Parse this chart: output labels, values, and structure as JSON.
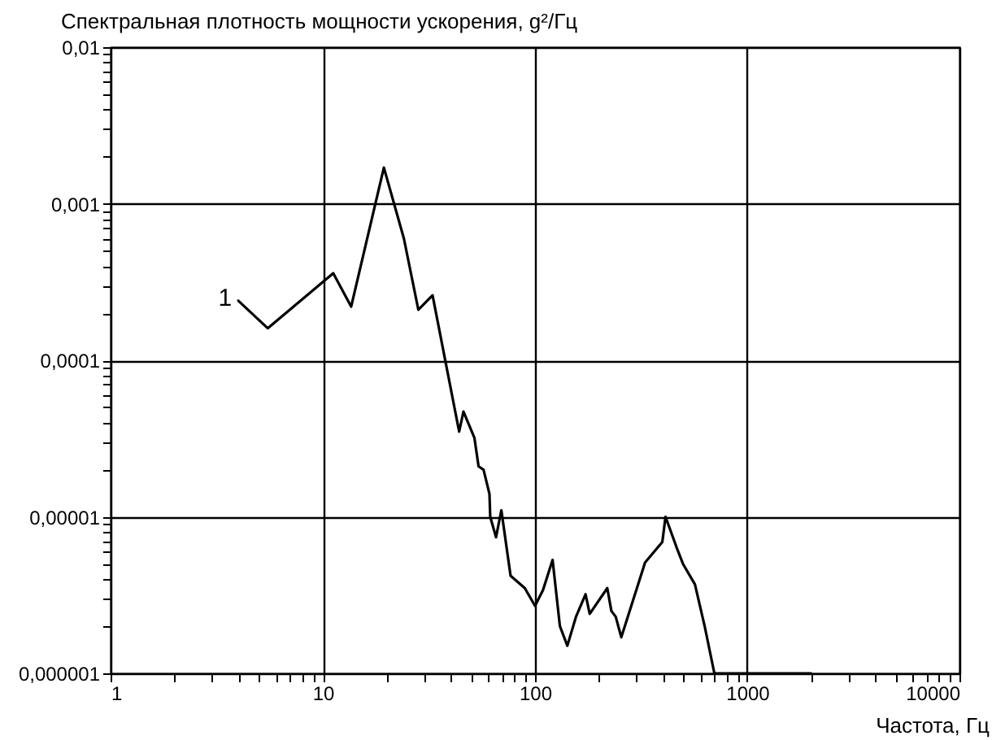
{
  "chart_data": {
    "type": "line",
    "ylabel": "Спектральная плотность мощности ускорения, g²/Гц",
    "xlabel": "Частота, Гц",
    "log": "xy",
    "grid": true,
    "marker": "none",
    "line_style": "solid",
    "xlim": [
      1,
      10000
    ],
    "ylim": [
      1e-06,
      0.01
    ],
    "xticks": [
      1,
      {
        "value": 2,
        "label": null
      },
      {
        "value": 3,
        "label": null
      },
      {
        "value": 4,
        "label": null
      },
      {
        "value": 5,
        "label": null
      },
      {
        "value": 6,
        "label": null
      },
      {
        "value": 7,
        "label": null
      },
      {
        "value": 8,
        "label": null
      },
      {
        "value": 9,
        "label": null
      },
      10,
      {
        "value": 20,
        "label": null
      },
      {
        "value": 30,
        "label": null
      },
      {
        "value": 40,
        "label": null
      },
      {
        "value": 50,
        "label": null
      },
      {
        "value": 60,
        "label": null
      },
      {
        "value": 70,
        "label": null
      },
      {
        "value": 80,
        "label": null
      },
      {
        "value": 90,
        "label": null
      },
      100,
      {
        "value": 200,
        "label": null
      },
      {
        "value": 300,
        "label": null
      },
      {
        "value": 400,
        "label": null
      },
      {
        "value": 500,
        "label": null
      },
      {
        "value": 600,
        "label": null
      },
      {
        "value": 700,
        "label": null
      },
      {
        "value": 800,
        "label": null
      },
      {
        "value": 900,
        "label": null
      },
      1000,
      {
        "value": 2000,
        "label": null
      },
      {
        "value": 3000,
        "label": null
      },
      {
        "value": 4000,
        "label": null
      },
      {
        "value": 5000,
        "label": null
      },
      {
        "value": 6000,
        "label": null
      },
      {
        "value": 7000,
        "label": null
      },
      {
        "value": 8000,
        "label": null
      },
      {
        "value": 9000,
        "label": null
      },
      10000
    ],
    "yticks": [
      {
        "value": 1e-06,
        "label": "0,000001"
      },
      {
        "value": 2e-06,
        "label": null
      },
      {
        "value": 3e-06,
        "label": null
      },
      {
        "value": 4e-06,
        "label": null
      },
      {
        "value": 5e-06,
        "label": null
      },
      {
        "value": 6e-06,
        "label": null
      },
      {
        "value": 7e-06,
        "label": null
      },
      {
        "value": 8e-06,
        "label": null
      },
      {
        "value": 9e-06,
        "label": null
      },
      {
        "value": 1e-05,
        "label": "0,00001"
      },
      {
        "value": 2e-05,
        "label": null
      },
      {
        "value": 3e-05,
        "label": null
      },
      {
        "value": 4e-05,
        "label": null
      },
      {
        "value": 5e-05,
        "label": null
      },
      {
        "value": 6e-05,
        "label": null
      },
      {
        "value": 7e-05,
        "label": null
      },
      {
        "value": 8e-05,
        "label": null
      },
      {
        "value": 9e-05,
        "label": null
      },
      {
        "value": 0.0001,
        "label": "0,0001"
      },
      {
        "value": 0.0002,
        "label": null
      },
      {
        "value": 0.0003,
        "label": null
      },
      {
        "value": 0.0004,
        "label": null
      },
      {
        "value": 0.0005,
        "label": null
      },
      {
        "value": 0.0006,
        "label": null
      },
      {
        "value": 0.0007,
        "label": null
      },
      {
        "value": 0.0008,
        "label": null
      },
      {
        "value": 0.0009,
        "label": null
      },
      {
        "value": 0.001,
        "label": "0,001"
      },
      {
        "value": 0.002,
        "label": null
      },
      {
        "value": 0.003,
        "label": null
      },
      {
        "value": 0.004,
        "label": null
      },
      {
        "value": 0.005,
        "label": null
      },
      {
        "value": 0.006,
        "label": null
      },
      {
        "value": 0.007,
        "label": null
      },
      {
        "value": 0.008,
        "label": null
      },
      {
        "value": 0.009,
        "label": null
      },
      {
        "value": 0.01,
        "label": "0,01"
      }
    ],
    "series": [
      {
        "name": "1",
        "color": "#000000",
        "x": [
          4.0,
          5.5,
          11.2,
          13.6,
          19.4,
          24.1,
          28.2,
          32.9,
          43.9,
          46,
          51.8,
          54.2,
          57.2,
          61,
          61.5,
          65.5,
          69.4,
          76.7,
          89.5,
          100,
          109,
          121,
          131,
          142,
          156,
          173,
          181,
          219,
          229,
          240,
          255,
          330,
          398,
          412,
          464,
          498,
          567,
          630,
          700,
          2000
        ],
        "values": [
          0.00024,
          0.00016,
          0.00036,
          0.00022,
          0.0017,
          0.0006,
          0.00021,
          0.00026,
          3.5e-05,
          4.7e-05,
          3.2e-05,
          2.1e-05,
          2e-05,
          1.4e-05,
          1e-05,
          7.4e-06,
          1.1e-05,
          4.2e-06,
          3.5e-06,
          2.7e-06,
          3.4e-06,
          5.3e-06,
          2e-06,
          1.5e-06,
          2.3e-06,
          3.2e-06,
          2.4e-06,
          3.5e-06,
          2.5e-06,
          2.3e-06,
          1.7e-06,
          5.1e-06,
          6.9e-06,
          1e-05,
          6.4e-06,
          5e-06,
          3.7e-06,
          2e-06,
          1e-06,
          1e-06
        ]
      }
    ]
  }
}
